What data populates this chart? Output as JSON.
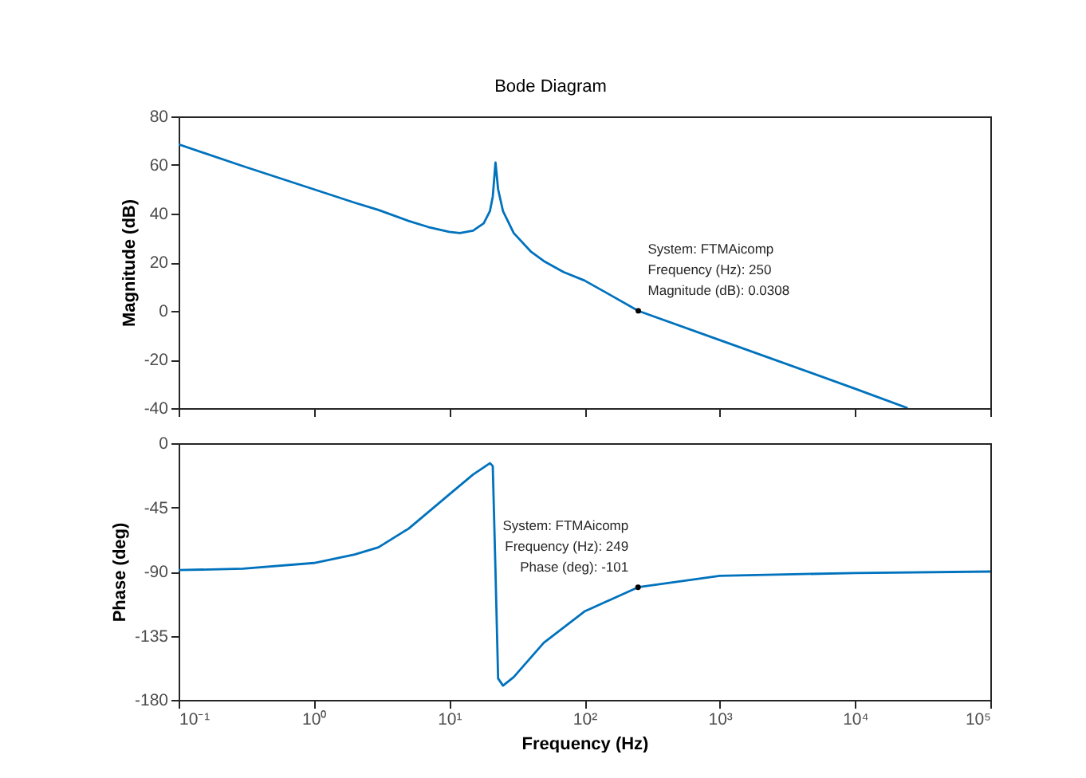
{
  "chart_data": [
    {
      "type": "line",
      "title": "Bode Diagram",
      "ylabel": "Magnitude (dB)",
      "log": "x",
      "tick_labels": "y",
      "x": [
        0.1,
        0.3,
        1,
        2,
        3,
        5,
        7,
        10,
        12,
        15,
        18,
        20,
        21,
        22,
        23,
        25,
        30,
        40,
        50,
        70,
        100,
        150,
        250,
        1000,
        10000,
        24500
      ],
      "series": [
        {
          "color": "#0072bd",
          "values": [
            68.5,
            59.5,
            50,
            44.5,
            41.5,
            37,
            34.5,
            32.5,
            32,
            33,
            36,
            41,
            47,
            61,
            50,
            41,
            32,
            24.5,
            20.5,
            16,
            12.5,
            7,
            0,
            -12,
            -32,
            -40
          ]
        }
      ],
      "xlim": [
        0.1,
        100000
      ],
      "ylim": [
        -40,
        80
      ],
      "yticks": [
        -40,
        -20,
        0,
        20,
        40,
        60,
        80
      ],
      "xticks": [
        {
          "value": 0.1,
          "label": null
        },
        {
          "value": 1,
          "label": null
        },
        {
          "value": 10,
          "label": null
        },
        {
          "value": 100,
          "label": null
        },
        {
          "value": 1000,
          "label": null
        },
        {
          "value": 10000,
          "label": null
        },
        {
          "value": 100000,
          "label": null
        }
      ],
      "annotations": [
        {
          "text": "System: FTMAicomp\nFrequency (Hz): 250\nMagnitude (dB): 0.0308",
          "x": 250,
          "y": 0.0308
        }
      ]
    },
    {
      "type": "line",
      "xlabel": "Frequency  (Hz)",
      "ylabel": "Phase (deg)",
      "log": "x",
      "x": [
        0.1,
        0.3,
        1,
        2,
        3,
        5,
        10,
        15,
        20,
        21,
        22,
        23,
        25,
        30,
        50,
        100,
        249,
        1000,
        10000,
        100000
      ],
      "series": [
        {
          "color": "#0072bd",
          "values": [
            -89,
            -88,
            -84,
            -78,
            -73,
            -60,
            -36,
            -22,
            -14,
            -16,
            -90,
            -165,
            -170,
            -164,
            -140,
            -118,
            -101,
            -93,
            -91,
            -90
          ]
        }
      ],
      "xlim": [
        0.1,
        100000
      ],
      "ylim": [
        -180,
        0
      ],
      "yticks": [
        -180,
        -135,
        -90,
        -45,
        0
      ],
      "xticks": [
        {
          "value": 0.1,
          "label": "10⁻¹"
        },
        {
          "value": 1,
          "label": "10⁰"
        },
        {
          "value": 10,
          "label": "10¹"
        },
        {
          "value": 100,
          "label": "10²"
        },
        {
          "value": 1000,
          "label": "10³"
        },
        {
          "value": 10000,
          "label": "10⁴"
        },
        {
          "value": 100000,
          "label": "10⁵"
        }
      ],
      "annotations": [
        {
          "text": "System: FTMAicomp\nFrequency (Hz): 249\nPhase (deg): -101",
          "x": 249,
          "y": -101
        }
      ]
    }
  ]
}
